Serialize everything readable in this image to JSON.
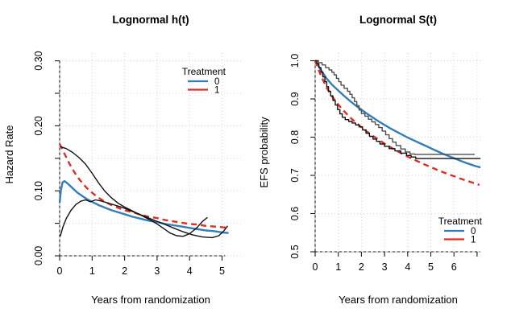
{
  "figure": {
    "background": "#ffffff"
  },
  "palette": {
    "treatment0": "#337eb8",
    "treatment1": "#de2d26",
    "empirical_black": "#111111",
    "empirical_gray": "#4d4d4d",
    "grid": "#d4d4d4",
    "axis": "#1a1a1a"
  },
  "chart_data": [
    {
      "type": "line",
      "title": "Lognormal h(t)",
      "xlabel": "Years from randomization",
      "ylabel": "Hazard Rate",
      "xlim": [
        0,
        5.6
      ],
      "ylim": [
        0,
        0.3
      ],
      "grid": true,
      "legend_position": "top-right",
      "legend": {
        "title": "Treatment",
        "entries": [
          {
            "label": "0",
            "color": "#337eb8"
          },
          {
            "label": "1",
            "color": "#de2d26"
          }
        ]
      },
      "xticks": {
        "values": [
          0,
          1,
          2,
          3,
          4,
          5
        ],
        "labels": [
          "0",
          "1",
          "2",
          "3",
          "4",
          "5"
        ]
      },
      "yticks": {
        "values": [
          0,
          0.05,
          0.1,
          0.15,
          0.2,
          0.25,
          0.3
        ],
        "labels": [
          "0.00",
          "",
          "0.10",
          "",
          "0.20",
          "",
          "0.30"
        ]
      },
      "series": [
        {
          "name": "lognormal fit treatment 0",
          "color": "#337eb8",
          "width": 2.4,
          "dash": "",
          "step": false,
          "points": [
            [
              0,
              0.082
            ],
            [
              0.04,
              0.101
            ],
            [
              0.09,
              0.113
            ],
            [
              0.15,
              0.115
            ],
            [
              0.25,
              0.111
            ],
            [
              0.4,
              0.104
            ],
            [
              0.55,
              0.097
            ],
            [
              0.7,
              0.092
            ],
            [
              0.85,
              0.087
            ],
            [
              1,
              0.083
            ],
            [
              1.2,
              0.078
            ],
            [
              1.4,
              0.074
            ],
            [
              1.6,
              0.07
            ],
            [
              1.8,
              0.067
            ],
            [
              2,
              0.064
            ],
            [
              2.25,
              0.06
            ],
            [
              2.5,
              0.057
            ],
            [
              2.75,
              0.054
            ],
            [
              3,
              0.052
            ],
            [
              3.25,
              0.049
            ],
            [
              3.5,
              0.047
            ],
            [
              3.75,
              0.045
            ],
            [
              4,
              0.043
            ],
            [
              4.25,
              0.041
            ],
            [
              4.5,
              0.039
            ],
            [
              4.75,
              0.038
            ],
            [
              5,
              0.036
            ],
            [
              5.2,
              0.035
            ]
          ]
        },
        {
          "name": "lognormal fit treatment 1",
          "color": "#de2d26",
          "width": 2.4,
          "dash": "7 5",
          "step": false,
          "points": [
            [
              0,
              0.172
            ],
            [
              0.15,
              0.157
            ],
            [
              0.3,
              0.142
            ],
            [
              0.45,
              0.129
            ],
            [
              0.6,
              0.118
            ],
            [
              0.75,
              0.109
            ],
            [
              0.9,
              0.101
            ],
            [
              1.05,
              0.095
            ],
            [
              1.2,
              0.089
            ],
            [
              1.4,
              0.083
            ],
            [
              1.6,
              0.078
            ],
            [
              1.8,
              0.074
            ],
            [
              2,
              0.07
            ],
            [
              2.25,
              0.067
            ],
            [
              2.5,
              0.063
            ],
            [
              2.75,
              0.06
            ],
            [
              3,
              0.058
            ],
            [
              3.25,
              0.055
            ],
            [
              3.5,
              0.053
            ],
            [
              3.75,
              0.051
            ],
            [
              4,
              0.049
            ],
            [
              4.25,
              0.048
            ],
            [
              4.5,
              0.046
            ],
            [
              4.75,
              0.045
            ],
            [
              5,
              0.044
            ],
            [
              5.2,
              0.043
            ]
          ]
        },
        {
          "name": "smoothed hazard treatment 1",
          "color": "#111111",
          "width": 1.4,
          "dash": "",
          "step": false,
          "points": [
            [
              0.02,
              0.168
            ],
            [
              0.2,
              0.165
            ],
            [
              0.4,
              0.159
            ],
            [
              0.6,
              0.151
            ],
            [
              0.8,
              0.141
            ],
            [
              1,
              0.127
            ],
            [
              1.2,
              0.112
            ],
            [
              1.4,
              0.099
            ],
            [
              1.6,
              0.089
            ],
            [
              1.8,
              0.081
            ],
            [
              2,
              0.075
            ],
            [
              2.2,
              0.07
            ],
            [
              2.4,
              0.065
            ],
            [
              2.6,
              0.06
            ],
            [
              2.8,
              0.055
            ],
            [
              3,
              0.049
            ],
            [
              3.2,
              0.042
            ],
            [
              3.4,
              0.035
            ],
            [
              3.6,
              0.031
            ],
            [
              3.8,
              0.03
            ],
            [
              4,
              0.034
            ],
            [
              4.2,
              0.042
            ],
            [
              4.4,
              0.053
            ],
            [
              4.55,
              0.059
            ]
          ]
        },
        {
          "name": "smoothed hazard treatment 0",
          "color": "#111111",
          "width": 1.4,
          "dash": "",
          "step": false,
          "points": [
            [
              0.02,
              0.03
            ],
            [
              0.1,
              0.044
            ],
            [
              0.2,
              0.057
            ],
            [
              0.35,
              0.07
            ],
            [
              0.5,
              0.079
            ],
            [
              0.65,
              0.084
            ],
            [
              0.8,
              0.086
            ],
            [
              0.95,
              0.083
            ],
            [
              1.1,
              0.086
            ],
            [
              1.3,
              0.084
            ],
            [
              1.5,
              0.081
            ],
            [
              1.7,
              0.078
            ],
            [
              1.9,
              0.075
            ],
            [
              2.1,
              0.071
            ],
            [
              2.35,
              0.066
            ],
            [
              2.6,
              0.061
            ],
            [
              2.9,
              0.055
            ],
            [
              3.2,
              0.049
            ],
            [
              3.5,
              0.043
            ],
            [
              3.8,
              0.037
            ],
            [
              4.1,
              0.032
            ],
            [
              4.4,
              0.029
            ],
            [
              4.7,
              0.028
            ],
            [
              4.9,
              0.031
            ],
            [
              5.05,
              0.038
            ],
            [
              5.17,
              0.046
            ]
          ]
        }
      ]
    },
    {
      "type": "line",
      "title": "Lognormal S(t)",
      "xlabel": "Years from randomization",
      "ylabel": "EFS probability",
      "xlim": [
        0,
        7.2
      ],
      "ylim": [
        0.5,
        1.0
      ],
      "grid": true,
      "legend_position": "bottom-right",
      "legend": {
        "title": "Treatment",
        "entries": [
          {
            "label": "0",
            "color": "#337eb8"
          },
          {
            "label": "1",
            "color": "#de2d26"
          }
        ]
      },
      "xticks": {
        "values": [
          0,
          1,
          2,
          3,
          4,
          5,
          6,
          7
        ],
        "labels": [
          "0",
          "1",
          "2",
          "3",
          "4",
          "5",
          "6",
          ""
        ]
      },
      "yticks": {
        "values": [
          0.5,
          0.6,
          0.7,
          0.8,
          0.9,
          1.0
        ],
        "labels": [
          "0.5",
          "0.6",
          "0.7",
          "0.8",
          "0.9",
          "1.0"
        ]
      },
      "series": [
        {
          "name": "lognormal fit treatment 0",
          "color": "#337eb8",
          "width": 2.4,
          "dash": "",
          "step": false,
          "points": [
            [
              0,
              1
            ],
            [
              0.25,
              0.976
            ],
            [
              0.5,
              0.953
            ],
            [
              0.75,
              0.936
            ],
            [
              1,
              0.922
            ],
            [
              1.25,
              0.908
            ],
            [
              1.5,
              0.895
            ],
            [
              1.75,
              0.883
            ],
            [
              2,
              0.872
            ],
            [
              2.25,
              0.861
            ],
            [
              2.5,
              0.851
            ],
            [
              2.75,
              0.841
            ],
            [
              3,
              0.832
            ],
            [
              3.25,
              0.823
            ],
            [
              3.5,
              0.815
            ],
            [
              3.75,
              0.807
            ],
            [
              4,
              0.799
            ],
            [
              4.25,
              0.792
            ],
            [
              4.5,
              0.785
            ],
            [
              4.75,
              0.778
            ],
            [
              5,
              0.771
            ],
            [
              5.25,
              0.764
            ],
            [
              5.5,
              0.757
            ],
            [
              5.75,
              0.751
            ],
            [
              6,
              0.745
            ],
            [
              6.25,
              0.739
            ],
            [
              6.5,
              0.733
            ],
            [
              6.75,
              0.728
            ],
            [
              7,
              0.723
            ],
            [
              7.15,
              0.721
            ]
          ]
        },
        {
          "name": "lognormal fit treatment 1",
          "color": "#de2d26",
          "width": 2.4,
          "dash": "7 5",
          "step": false,
          "points": [
            [
              0,
              1
            ],
            [
              0.25,
              0.961
            ],
            [
              0.5,
              0.929
            ],
            [
              0.75,
              0.905
            ],
            [
              1,
              0.885
            ],
            [
              1.25,
              0.868
            ],
            [
              1.5,
              0.852
            ],
            [
              1.75,
              0.839
            ],
            [
              2,
              0.826
            ],
            [
              2.25,
              0.814
            ],
            [
              2.5,
              0.803
            ],
            [
              2.75,
              0.793
            ],
            [
              3,
              0.783
            ],
            [
              3.25,
              0.774
            ],
            [
              3.5,
              0.765
            ],
            [
              3.75,
              0.757
            ],
            [
              4,
              0.749
            ],
            [
              4.25,
              0.742
            ],
            [
              4.5,
              0.735
            ],
            [
              4.75,
              0.728
            ],
            [
              5,
              0.722
            ],
            [
              5.25,
              0.715
            ],
            [
              5.5,
              0.709
            ],
            [
              5.75,
              0.703
            ],
            [
              6,
              0.698
            ],
            [
              6.25,
              0.692
            ],
            [
              6.5,
              0.687
            ],
            [
              6.75,
              0.682
            ],
            [
              7,
              0.677
            ],
            [
              7.1,
              0.675
            ]
          ]
        },
        {
          "name": "Kaplan-Meier treatment 0",
          "color": "#4d4d4d",
          "width": 1.4,
          "dash": "",
          "step": true,
          "points": [
            [
              0,
              1
            ],
            [
              0.15,
              0.995
            ],
            [
              0.3,
              0.989
            ],
            [
              0.45,
              0.982
            ],
            [
              0.6,
              0.976
            ],
            [
              0.72,
              0.97
            ],
            [
              0.82,
              0.963
            ],
            [
              0.92,
              0.954
            ],
            [
              1.02,
              0.945
            ],
            [
              1.12,
              0.936
            ],
            [
              1.25,
              0.928
            ],
            [
              1.4,
              0.92
            ],
            [
              1.5,
              0.912
            ],
            [
              1.6,
              0.903
            ],
            [
              1.7,
              0.893
            ],
            [
              1.8,
              0.882
            ],
            [
              1.9,
              0.871
            ],
            [
              2,
              0.862
            ],
            [
              2.15,
              0.855
            ],
            [
              2.3,
              0.847
            ],
            [
              2.45,
              0.84
            ],
            [
              2.6,
              0.833
            ],
            [
              2.75,
              0.825
            ],
            [
              2.9,
              0.816
            ],
            [
              3.05,
              0.806
            ],
            [
              3.2,
              0.796
            ],
            [
              3.35,
              0.787
            ],
            [
              3.5,
              0.778
            ],
            [
              3.7,
              0.769
            ],
            [
              3.9,
              0.761
            ],
            [
              4.1,
              0.756
            ],
            [
              4.3,
              0.755
            ],
            [
              6.9,
              0.755
            ]
          ]
        },
        {
          "name": "Kaplan-Meier treatment 1",
          "color": "#111111",
          "width": 1.4,
          "dash": "",
          "step": true,
          "points": [
            [
              0,
              1
            ],
            [
              0.08,
              0.992
            ],
            [
              0.16,
              0.982
            ],
            [
              0.25,
              0.97
            ],
            [
              0.33,
              0.958
            ],
            [
              0.42,
              0.945
            ],
            [
              0.5,
              0.932
            ],
            [
              0.58,
              0.92
            ],
            [
              0.67,
              0.908
            ],
            [
              0.77,
              0.896
            ],
            [
              0.87,
              0.884
            ],
            [
              0.97,
              0.872
            ],
            [
              1.07,
              0.861
            ],
            [
              1.17,
              0.852
            ],
            [
              1.3,
              0.846
            ],
            [
              1.45,
              0.841
            ],
            [
              1.6,
              0.837
            ],
            [
              1.75,
              0.832
            ],
            [
              1.9,
              0.827
            ],
            [
              2.05,
              0.819
            ],
            [
              2.2,
              0.81
            ],
            [
              2.35,
              0.802
            ],
            [
              2.5,
              0.795
            ],
            [
              2.65,
              0.789
            ],
            [
              2.8,
              0.782
            ],
            [
              3,
              0.776
            ],
            [
              3.2,
              0.77
            ],
            [
              3.45,
              0.764
            ],
            [
              3.7,
              0.758
            ],
            [
              3.95,
              0.752
            ],
            [
              4.15,
              0.748
            ],
            [
              4.35,
              0.744
            ],
            [
              7.15,
              0.744
            ]
          ]
        }
      ]
    }
  ]
}
